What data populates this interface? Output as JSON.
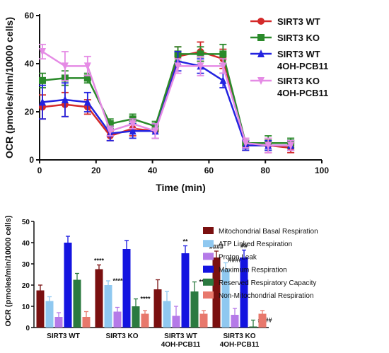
{
  "chart_data": [
    {
      "type": "line",
      "xlabel": "Time (min)",
      "ylabel": "OCR (pmoles/min/10000 cells)",
      "xlim": [
        0,
        100
      ],
      "ylim": [
        0,
        60
      ],
      "xticks": [
        "0",
        "20",
        "40",
        "60",
        "80",
        "100"
      ],
      "yticks": [
        "0",
        "20",
        "40",
        "60"
      ],
      "legend_position": "top-right",
      "x": [
        1,
        9,
        17,
        25,
        33,
        41,
        49,
        57,
        65,
        73,
        81,
        89
      ],
      "series": [
        {
          "name": "SIRT3 WT",
          "color": "#d42a2a",
          "marker": "circle",
          "values": [
            22,
            23,
            22,
            10,
            13,
            12,
            43,
            45,
            42,
            6,
            6,
            5
          ],
          "errors": [
            5,
            5,
            3,
            2,
            3,
            3,
            4,
            4,
            4,
            2,
            3,
            2
          ]
        },
        {
          "name": "SIRT3 KO",
          "color": "#2a8a2a",
          "marker": "square",
          "values": [
            33,
            34,
            34,
            15,
            17,
            14,
            44,
            44,
            44,
            7,
            7,
            7
          ],
          "errors": [
            3,
            3,
            2,
            2,
            2,
            2,
            3,
            3,
            4,
            2,
            3,
            2
          ]
        },
        {
          "name": "SIRT3 WT\n4OH-PCB11",
          "color": "#2323e0",
          "marker": "triangle",
          "values": [
            24,
            25,
            24,
            11,
            12,
            12,
            41,
            39,
            33,
            6,
            6,
            6
          ],
          "errors": [
            7,
            7,
            4,
            3,
            3,
            3,
            4,
            3,
            3,
            2,
            2,
            2
          ]
        },
        {
          "name": "SIRT3 KO\n4OH-PCB11",
          "color": "#e58be5",
          "marker": "triangle-down",
          "values": [
            45,
            39,
            39,
            12,
            15,
            12,
            39,
            39,
            39,
            7,
            6,
            6
          ],
          "errors": [
            3,
            6,
            4,
            2,
            2,
            3,
            3,
            4,
            3,
            2,
            3,
            2
          ]
        }
      ]
    },
    {
      "type": "bar",
      "ylabel": "OCR (pmoles/min/10000 cells)",
      "ylim": [
        0,
        50
      ],
      "yticks": [
        "0",
        "10",
        "20",
        "30",
        "40",
        "50"
      ],
      "legend_position": "top-right",
      "categories": [
        "SIRT3 WT",
        "SIRT3 KO",
        "SIRT3 WT\n4OH-PCB11",
        "SIRT3 KO\n4OH-PCB11"
      ],
      "series": [
        {
          "name": "Mitochondrial Basal Respiration",
          "color": "#7a1010",
          "values": [
            17.5,
            27.5,
            18,
            33
          ],
          "errors": [
            2.5,
            2,
            4.5,
            3
          ],
          "annotations": [
            "",
            "****",
            "",
            "####"
          ]
        },
        {
          "name": "ATP Linked Respiration",
          "color": "#8fc8f0",
          "values": [
            12.5,
            20,
            12.5,
            27.5
          ],
          "errors": [
            2,
            2,
            4.5,
            3
          ],
          "annotations": [
            "",
            "****",
            "",
            "####"
          ]
        },
        {
          "name": "Proton Leak",
          "color": "#b57ae8",
          "values": [
            5,
            7.5,
            5.5,
            6
          ],
          "errors": [
            2,
            2,
            4.5,
            3
          ],
          "annotations": [
            "",
            "",
            "",
            ""
          ]
        },
        {
          "name": "Maximum Respiration",
          "color": "#1414e0",
          "values": [
            40,
            37,
            35,
            33
          ],
          "errors": [
            3,
            4,
            3.5,
            3.5
          ],
          "annotations": [
            "",
            "",
            "**",
            "##"
          ]
        },
        {
          "name": "Reserved Respiratory Capacity",
          "color": "#2b7a40",
          "values": [
            22.5,
            10,
            17,
            0.5
          ],
          "errors": [
            3,
            3.5,
            4.5,
            3
          ],
          "annotations": [
            "",
            "****",
            "**",
            "####"
          ]
        },
        {
          "name": "Non-Mitochondrial Respiration",
          "color": "#e8786c",
          "values": [
            5,
            6.5,
            6.5,
            6.5
          ],
          "errors": [
            2.5,
            1.5,
            1.5,
            1.5
          ],
          "annotations": [
            "",
            "",
            "",
            ""
          ]
        }
      ]
    }
  ]
}
